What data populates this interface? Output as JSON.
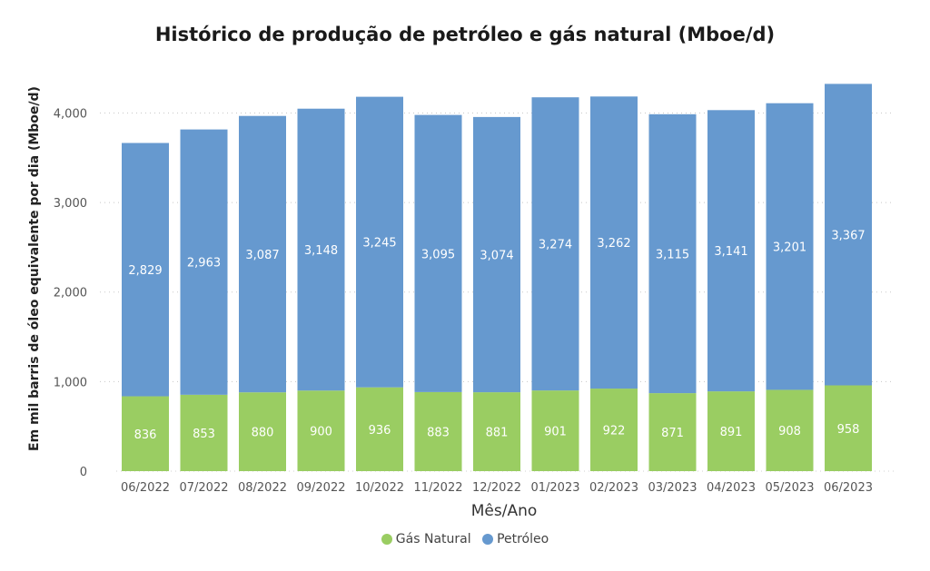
{
  "chart_data": {
    "type": "bar",
    "stacked": true,
    "title": "Histórico de produção de petróleo e gás natural (Mboe/d)",
    "xlabel": "Mês/Ano",
    "ylabel": "Em mil barris de óleo equivalente por dia (Mboe/d)",
    "ylim": [
      0,
      4400
    ],
    "yticks": [
      0,
      1000,
      2000,
      3000,
      4000
    ],
    "ytick_labels": [
      "0",
      "1,000",
      "2,000",
      "3,000",
      "4,000"
    ],
    "grid": true,
    "legend_position": "bottom",
    "categories": [
      "06/2022",
      "07/2022",
      "08/2022",
      "09/2022",
      "10/2022",
      "11/2022",
      "12/2022",
      "01/2023",
      "02/2023",
      "03/2023",
      "04/2023",
      "05/2023",
      "06/2023"
    ],
    "series": [
      {
        "name": "Gás Natural",
        "color": "#9ACD62",
        "values": [
          836,
          853,
          880,
          900,
          936,
          883,
          881,
          901,
          922,
          871,
          891,
          908,
          958
        ],
        "labels": [
          "836",
          "853",
          "880",
          "900",
          "936",
          "883",
          "881",
          "901",
          "922",
          "871",
          "891",
          "908",
          "958"
        ]
      },
      {
        "name": "Petróleo",
        "color": "#6699CF",
        "values": [
          2829,
          2963,
          3087,
          3148,
          3245,
          3095,
          3074,
          3274,
          3262,
          3115,
          3141,
          3201,
          3367
        ],
        "labels": [
          "2,829",
          "2,963",
          "3,087",
          "3,148",
          "3,245",
          "3,095",
          "3,074",
          "3,274",
          "3,262",
          "3,115",
          "3,141",
          "3,201",
          "3,367"
        ]
      }
    ]
  }
}
